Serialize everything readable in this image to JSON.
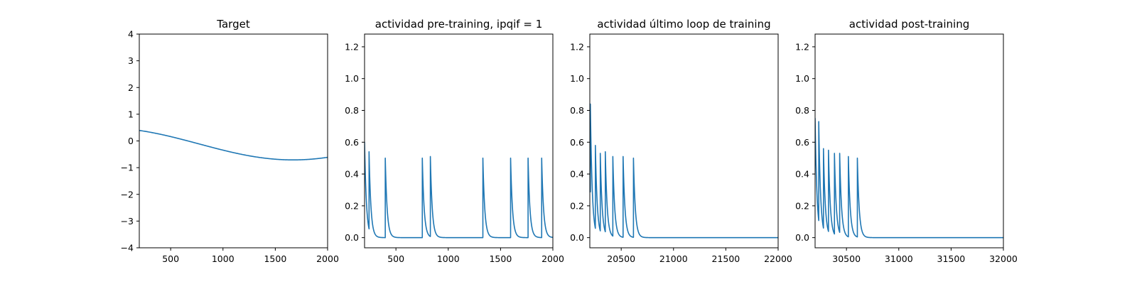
{
  "colors": {
    "series": "#1f77b4",
    "axis": "#000000",
    "background": "#ffffff"
  },
  "chart_data": [
    {
      "type": "line",
      "title": "Target",
      "xlabel": "",
      "ylabel": "",
      "xlim": [
        200,
        2000
      ],
      "ylim": [
        -4,
        4
      ],
      "xticks": [
        500,
        1000,
        1500,
        2000
      ],
      "xtick_labels": [
        "500",
        "1000",
        "1500",
        "2000"
      ],
      "yticks": [
        -4,
        -3,
        -2,
        -1,
        0,
        1,
        2,
        3,
        4
      ],
      "ytick_labels": [
        "−4",
        "−3",
        "−2",
        "−1",
        "0",
        "1",
        "2",
        "3",
        "4"
      ],
      "grid": false,
      "signal": {
        "kind": "sine",
        "mean": -0.11,
        "amplitude": 0.6,
        "peak_x": -130,
        "period": 3600
      }
    },
    {
      "type": "line",
      "title": "actividad pre-training, ipqif = 1",
      "xlabel": "",
      "ylabel": "",
      "xlim": [
        200,
        2000
      ],
      "ylim": [
        -0.064,
        1.28
      ],
      "xticks": [
        500,
        1000,
        1500,
        2000
      ],
      "xtick_labels": [
        "500",
        "1000",
        "1500",
        "2000"
      ],
      "yticks": [
        0.0,
        0.2,
        0.4,
        0.6,
        0.8,
        1.0,
        1.2
      ],
      "ytick_labels": [
        "0.0",
        "0.2",
        "0.4",
        "0.6",
        "0.8",
        "1.0",
        "1.2"
      ],
      "grid": false,
      "signal": {
        "kind": "spikes",
        "start_value": 0.6,
        "decay_tau": 18,
        "spikes": [
          {
            "x": 243,
            "peak": 0.54
          },
          {
            "x": 398,
            "peak": 0.5
          },
          {
            "x": 752,
            "peak": 0.5
          },
          {
            "x": 829,
            "peak": 0.51
          },
          {
            "x": 1331,
            "peak": 0.5
          },
          {
            "x": 1596,
            "peak": 0.5
          },
          {
            "x": 1763,
            "peak": 0.5
          },
          {
            "x": 1893,
            "peak": 0.5
          }
        ]
      }
    },
    {
      "type": "line",
      "title": "actividad último loop de training",
      "xlabel": "",
      "ylabel": "",
      "xlim": [
        20200,
        22000
      ],
      "ylim": [
        -0.064,
        1.28
      ],
      "xticks": [
        20500,
        21000,
        21500,
        22000
      ],
      "xtick_labels": [
        "20500",
        "21000",
        "21500",
        "22000"
      ],
      "yticks": [
        0.0,
        0.2,
        0.4,
        0.6,
        0.8,
        1.0,
        1.2
      ],
      "ytick_labels": [
        "0.0",
        "0.2",
        "0.4",
        "0.6",
        "0.8",
        "1.0",
        "1.2"
      ],
      "grid": false,
      "signal": {
        "kind": "spikes",
        "start_value": 0.38,
        "decay_tau": 18,
        "spikes": [
          {
            "x": 20205,
            "peak": 0.84
          },
          {
            "x": 20253,
            "peak": 0.58
          },
          {
            "x": 20300,
            "peak": 0.53
          },
          {
            "x": 20348,
            "peak": 0.54
          },
          {
            "x": 20420,
            "peak": 0.51
          },
          {
            "x": 20518,
            "peak": 0.51
          },
          {
            "x": 20617,
            "peak": 0.5
          }
        ]
      }
    },
    {
      "type": "line",
      "title": "actividad post-training",
      "xlabel": "",
      "ylabel": "",
      "xlim": [
        30200,
        32000
      ],
      "ylim": [
        -0.064,
        1.28
      ],
      "xticks": [
        30500,
        31000,
        31500,
        32000
      ],
      "xtick_labels": [
        "30500",
        "31000",
        "31500",
        "32000"
      ],
      "yticks": [
        0.0,
        0.2,
        0.4,
        0.6,
        0.8,
        1.0,
        1.2
      ],
      "ytick_labels": [
        "0.0",
        "0.2",
        "0.4",
        "0.6",
        "0.8",
        "1.0",
        "1.2"
      ],
      "grid": false,
      "signal": {
        "kind": "spikes",
        "start_value": 0.75,
        "decay_tau": 18,
        "spikes": [
          {
            "x": 30235,
            "peak": 0.73
          },
          {
            "x": 30280,
            "peak": 0.56
          },
          {
            "x": 30328,
            "peak": 0.55
          },
          {
            "x": 30385,
            "peak": 0.53
          },
          {
            "x": 30435,
            "peak": 0.53
          },
          {
            "x": 30518,
            "peak": 0.51
          },
          {
            "x": 30604,
            "peak": 0.5
          }
        ]
      }
    }
  ]
}
